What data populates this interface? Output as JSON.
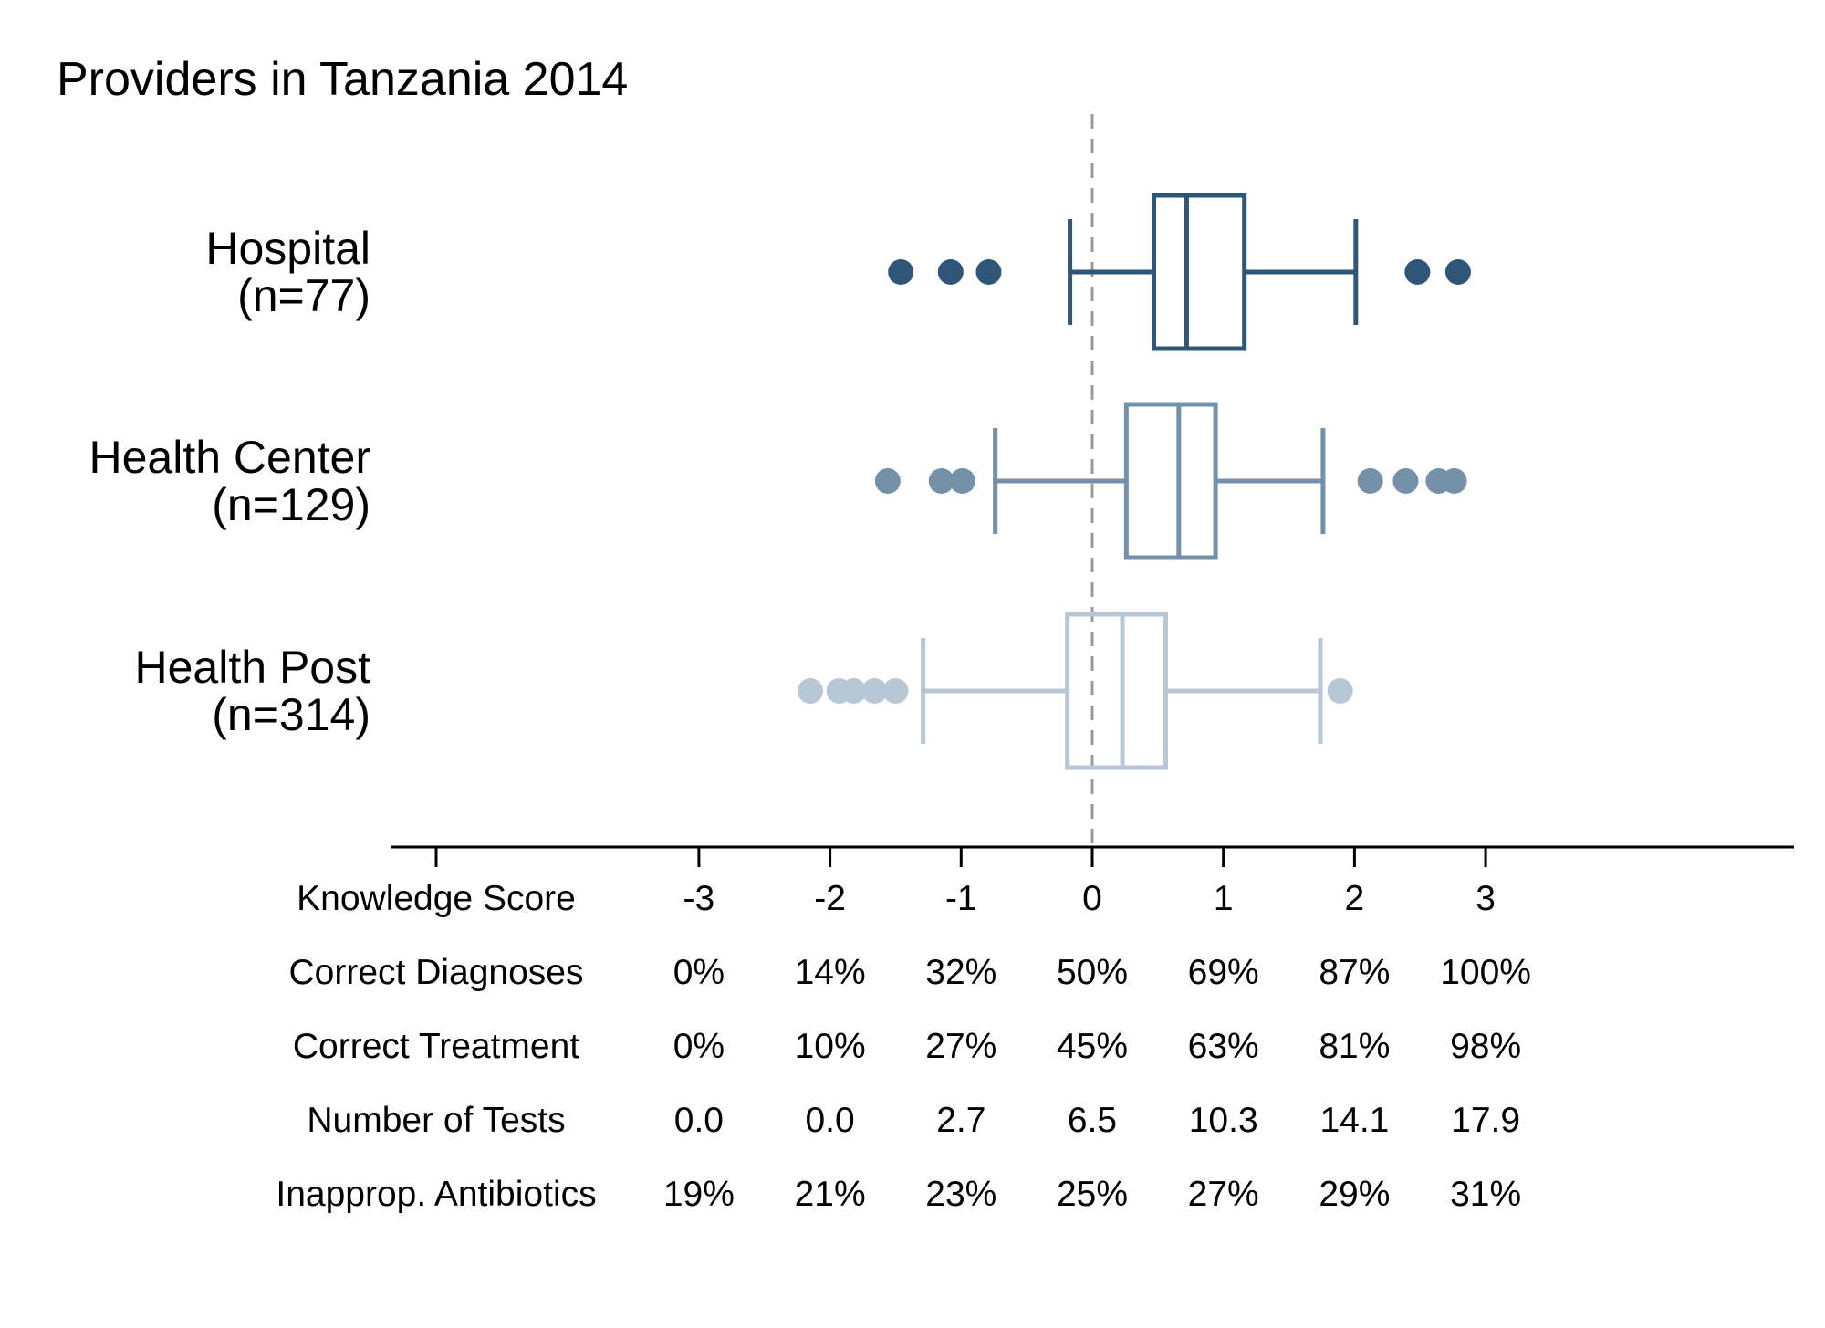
{
  "chart_data": {
    "type": "box",
    "title": "Providers in Tanzania 2014",
    "xlim": [
      -5.2,
      5.5
    ],
    "reference_line": 0,
    "categories": [
      {
        "name": "Hospital",
        "n_label": "(n=77)",
        "color": "#2f5679",
        "whisker_low": -0.17,
        "q1": 0.47,
        "median": 0.72,
        "q3": 1.16,
        "whisker_high": 2.01,
        "outliers": [
          -1.46,
          -1.08,
          -0.79,
          2.48,
          2.79
        ]
      },
      {
        "name": "Health Center",
        "n_label": "(n=129)",
        "color": "#7590a9",
        "whisker_low": -0.74,
        "q1": 0.26,
        "median": 0.66,
        "q3": 0.94,
        "whisker_high": 1.76,
        "outliers": [
          -1.56,
          -1.15,
          -0.99,
          2.12,
          2.39,
          2.64,
          2.76
        ]
      },
      {
        "name": "Health Post",
        "n_label": "(n=314)",
        "color": "#b8c7d5",
        "whisker_low": -1.29,
        "q1": -0.19,
        "median": 0.23,
        "q3": 0.56,
        "whisker_high": 1.74,
        "outliers": [
          -2.15,
          -1.93,
          -1.82,
          -1.66,
          -1.5,
          1.89
        ]
      }
    ],
    "axis_table": {
      "ticks": [
        -3,
        -2,
        -1,
        0,
        1,
        2,
        3
      ],
      "rows": [
        {
          "label": "Knowledge Score",
          "values": [
            "-3",
            "-2",
            "-1",
            "0",
            "1",
            "2",
            "3"
          ]
        },
        {
          "label": "Correct Diagnoses",
          "values": [
            "0%",
            "14%",
            "32%",
            "50%",
            "69%",
            "87%",
            "100%"
          ]
        },
        {
          "label": "Correct Treatment",
          "values": [
            "0%",
            "10%",
            "27%",
            "45%",
            "63%",
            "81%",
            "98%"
          ]
        },
        {
          "label": "Number of Tests",
          "values": [
            "0.0",
            "0.0",
            "2.7",
            "6.5",
            "10.3",
            "14.1",
            "17.9"
          ]
        },
        {
          "label": "Inapprop. Antibiotics",
          "values": [
            "19%",
            "21%",
            "23%",
            "25%",
            "27%",
            "29%",
            "31%"
          ]
        }
      ]
    },
    "colors": {
      "axis": "#000000",
      "reference": "#9a9a9a"
    }
  }
}
